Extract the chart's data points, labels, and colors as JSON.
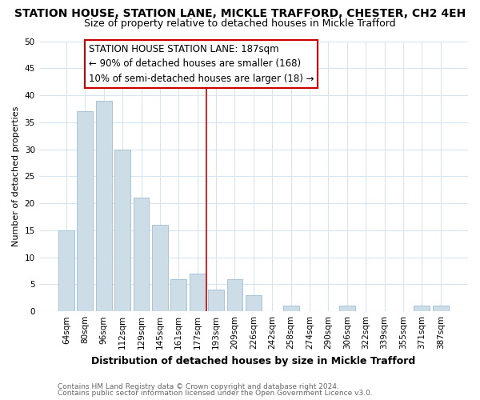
{
  "title": "STATION HOUSE, STATION LANE, MICKLE TRAFFORD, CHESTER, CH2 4EH",
  "subtitle": "Size of property relative to detached houses in Mickle Trafford",
  "xlabel": "Distribution of detached houses by size in Mickle Trafford",
  "ylabel": "Number of detached properties",
  "footer_line1": "Contains HM Land Registry data © Crown copyright and database right 2024.",
  "footer_line2": "Contains public sector information licensed under the Open Government Licence v3.0.",
  "bar_labels": [
    "64sqm",
    "80sqm",
    "96sqm",
    "112sqm",
    "129sqm",
    "145sqm",
    "161sqm",
    "177sqm",
    "193sqm",
    "209sqm",
    "226sqm",
    "242sqm",
    "258sqm",
    "274sqm",
    "290sqm",
    "306sqm",
    "322sqm",
    "339sqm",
    "355sqm",
    "371sqm",
    "387sqm"
  ],
  "bar_values": [
    15,
    37,
    39,
    30,
    21,
    16,
    6,
    7,
    4,
    6,
    3,
    0,
    1,
    0,
    0,
    1,
    0,
    0,
    0,
    1,
    1
  ],
  "bar_color": "#ccdde8",
  "bar_edge_color": "#aac4d8",
  "ylim": [
    0,
    50
  ],
  "yticks": [
    0,
    5,
    10,
    15,
    20,
    25,
    30,
    35,
    40,
    45,
    50
  ],
  "vline_x": 7.5,
  "vline_color": "#cc0000",
  "annotation_title": "STATION HOUSE STATION LANE: 187sqm",
  "annotation_line1": "← 90% of detached houses are smaller (168)",
  "annotation_line2": "10% of semi-detached houses are larger (18) →",
  "background_color": "#ffffff",
  "plot_bg_color": "#ffffff",
  "grid_color": "#d8e4ee",
  "title_fontsize": 10,
  "subtitle_fontsize": 9,
  "xlabel_fontsize": 9,
  "ylabel_fontsize": 8,
  "tick_fontsize": 7.5,
  "footer_fontsize": 6.5,
  "ann_fontsize": 8.5
}
